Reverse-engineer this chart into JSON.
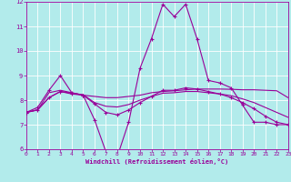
{
  "xlabel": "Windchill (Refroidissement éolien,°C)",
  "xlim": [
    0,
    23
  ],
  "ylim": [
    6,
    12
  ],
  "yticks": [
    6,
    7,
    8,
    9,
    10,
    11,
    12
  ],
  "xticks": [
    0,
    1,
    2,
    3,
    4,
    5,
    6,
    7,
    8,
    9,
    10,
    11,
    12,
    13,
    14,
    15,
    16,
    17,
    18,
    19,
    20,
    21,
    22,
    23
  ],
  "bg_color": "#b2ebeb",
  "grid_color": "#ffffff",
  "line_color": "#990099",
  "marker": "+",
  "series": [
    {
      "x": [
        0,
        1,
        2,
        3,
        4,
        5,
        6,
        7,
        8,
        9,
        10,
        11,
        12,
        13,
        14,
        15,
        16,
        17,
        18,
        19,
        20,
        21,
        22,
        23
      ],
      "y": [
        7.5,
        7.7,
        8.4,
        9.0,
        8.3,
        8.2,
        7.2,
        5.9,
        5.7,
        7.1,
        9.3,
        10.5,
        11.9,
        11.4,
        11.9,
        10.5,
        8.8,
        8.7,
        8.5,
        7.8,
        7.1,
        7.1,
        7.0,
        7.0
      ],
      "has_marker": true,
      "linewidth": 0.8
    },
    {
      "x": [
        0,
        1,
        2,
        3,
        4,
        5,
        6,
        7,
        8,
        9,
        10,
        11,
        12,
        13,
        14,
        15,
        16,
        17,
        18,
        19,
        20,
        21,
        22,
        23
      ],
      "y": [
        7.5,
        7.6,
        8.3,
        8.4,
        8.3,
        8.2,
        8.15,
        8.1,
        8.1,
        8.15,
        8.2,
        8.3,
        8.35,
        8.38,
        8.42,
        8.45,
        8.45,
        8.45,
        8.44,
        8.42,
        8.42,
        8.4,
        8.38,
        8.1
      ],
      "has_marker": false,
      "linewidth": 0.8
    },
    {
      "x": [
        0,
        1,
        2,
        3,
        4,
        5,
        6,
        7,
        8,
        9,
        10,
        11,
        12,
        13,
        14,
        15,
        16,
        17,
        18,
        19,
        20,
        21,
        22,
        23
      ],
      "y": [
        7.5,
        7.6,
        8.1,
        8.35,
        8.28,
        8.22,
        7.9,
        7.75,
        7.72,
        7.82,
        8.0,
        8.15,
        8.28,
        8.3,
        8.35,
        8.35,
        8.3,
        8.25,
        8.18,
        8.05,
        7.9,
        7.7,
        7.5,
        7.3
      ],
      "has_marker": false,
      "linewidth": 0.8
    },
    {
      "x": [
        0,
        1,
        2,
        3,
        4,
        5,
        6,
        7,
        8,
        9,
        10,
        11,
        12,
        13,
        14,
        15,
        16,
        17,
        18,
        19,
        20,
        21,
        22,
        23
      ],
      "y": [
        7.5,
        7.6,
        8.1,
        8.35,
        8.25,
        8.2,
        7.85,
        7.5,
        7.4,
        7.6,
        7.9,
        8.15,
        8.4,
        8.4,
        8.5,
        8.45,
        8.35,
        8.25,
        8.1,
        7.9,
        7.65,
        7.35,
        7.1,
        7.0
      ],
      "has_marker": true,
      "linewidth": 0.8
    }
  ]
}
